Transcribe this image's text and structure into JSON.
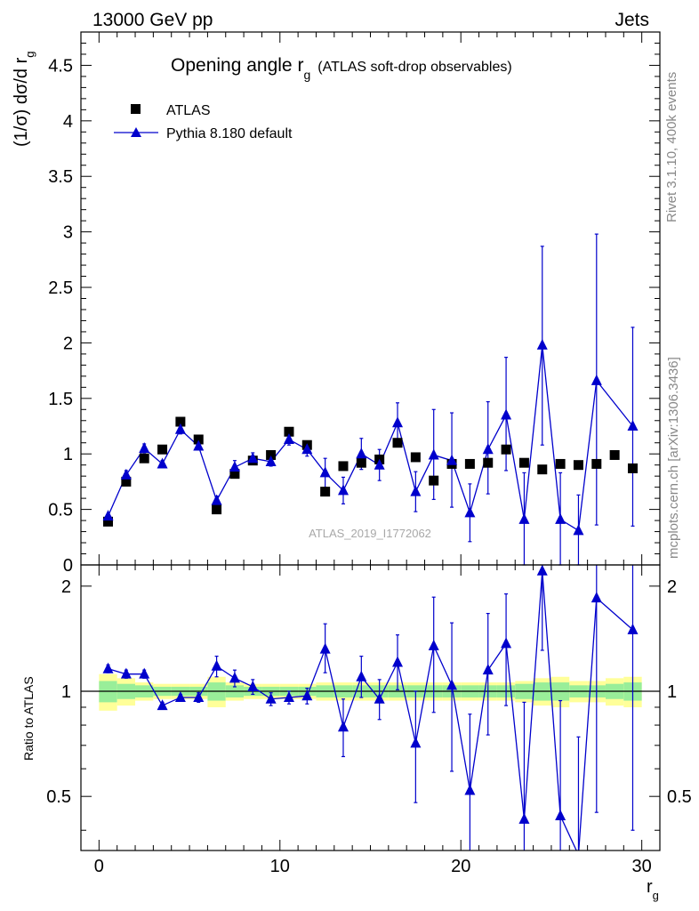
{
  "header": {
    "energy_label": "13000 GeV pp",
    "category_label": "Jets"
  },
  "side_labels": {
    "rivet_info": "Rivet 3.1.10,  400k events",
    "mcplots_info": "mcplots.cern.ch [arXiv:1306.3436]"
  },
  "chart_data": {
    "type": "scatter",
    "title_main": "Opening angle r",
    "title_sub": "g",
    "title_suffix": "(ATLAS soft-drop observables)",
    "watermark": "ATLAS_2019_I1772062",
    "xlabel_main": "r",
    "xlabel_sub": "g",
    "ylabel_main": "(1/σ) dσ/d r",
    "ylabel_sub": "g",
    "ratio_ylabel": "Ratio to ATLAS",
    "xlim": [
      -1,
      31
    ],
    "ylim": [
      0,
      4.8
    ],
    "ratio_ylim": [
      0.35,
      2.3
    ],
    "x_ticks": [
      "0",
      "10",
      "20",
      "30"
    ],
    "y_ticks": [
      "0",
      "0.5",
      "1",
      "1.5",
      "2",
      "2.5",
      "3",
      "3.5",
      "4",
      "4.5"
    ],
    "ratio_ticks": [
      "0.5",
      "1",
      "2"
    ],
    "legend": [
      {
        "name": "ATLAS",
        "marker": "square",
        "color": "#000000"
      },
      {
        "name": "Pythia 8.180 default",
        "marker": "triangle",
        "color": "#0000cc"
      }
    ],
    "x": [
      0.5,
      1.5,
      2.5,
      3.5,
      4.5,
      5.5,
      6.5,
      7.5,
      8.5,
      9.5,
      10.5,
      11.5,
      12.5,
      13.5,
      14.5,
      15.5,
      16.5,
      17.5,
      18.5,
      19.5,
      20.5,
      21.5,
      22.5,
      23.5,
      24.5,
      25.5,
      26.5,
      27.5,
      28.5,
      29.5
    ],
    "series": [
      {
        "name": "ATLAS",
        "values": [
          0.39,
          0.75,
          0.96,
          1.04,
          1.29,
          1.13,
          0.5,
          0.82,
          0.94,
          0.99,
          1.2,
          1.08,
          0.66,
          0.89,
          0.92,
          0.95,
          1.1,
          0.97,
          0.76,
          0.91,
          0.91,
          0.92,
          1.04,
          0.92,
          0.86,
          0.91,
          0.9,
          0.91,
          0.99,
          0.87
        ]
      },
      {
        "name": "Pythia 8.180 default",
        "values": [
          0.44,
          0.81,
          1.05,
          0.91,
          1.22,
          1.07,
          0.58,
          0.88,
          0.96,
          0.93,
          1.13,
          1.04,
          0.83,
          0.67,
          1.0,
          0.9,
          1.28,
          0.66,
          0.99,
          0.94,
          0.47,
          1.04,
          1.35,
          0.41,
          1.98,
          0.41,
          0.31,
          1.66,
          null,
          1.25
        ],
        "err_low": [
          0.02,
          0.04,
          0.04,
          0.03,
          0.04,
          0.03,
          0.04,
          0.06,
          0.05,
          0.04,
          0.05,
          0.06,
          0.13,
          0.12,
          0.14,
          0.14,
          0.16,
          0.18,
          0.4,
          0.42,
          0.26,
          0.4,
          0.5,
          0.41,
          0.9,
          0.41,
          0.31,
          1.3,
          null,
          0.9
        ],
        "err_high": [
          0.02,
          0.04,
          0.04,
          0.03,
          0.04,
          0.03,
          0.04,
          0.06,
          0.05,
          0.04,
          0.05,
          0.06,
          0.13,
          0.12,
          0.14,
          0.14,
          0.18,
          0.18,
          0.41,
          0.43,
          0.26,
          0.43,
          0.52,
          0.42,
          0.89,
          0.42,
          0.32,
          1.32,
          null,
          0.89
        ]
      }
    ],
    "ratio_values": [
      1.16,
      1.12,
      1.12,
      0.91,
      0.96,
      0.96,
      1.18,
      1.09,
      1.03,
      0.95,
      0.96,
      0.97,
      1.32,
      0.79,
      1.1,
      0.95,
      1.21,
      0.71,
      1.35,
      1.04,
      0.52,
      1.15,
      1.37,
      0.43,
      2.21,
      0.44,
      0.34,
      1.85,
      null,
      1.5
    ],
    "ratio_err_low": [
      0.03,
      0.03,
      0.03,
      0.02,
      0.02,
      0.03,
      0.08,
      0.06,
      0.05,
      0.04,
      0.04,
      0.05,
      0.19,
      0.14,
      0.14,
      0.12,
      0.2,
      0.23,
      0.48,
      0.45,
      0.3,
      0.4,
      0.46,
      0.45,
      0.9,
      0.45,
      0.34,
      1.4,
      null,
      1.1
    ],
    "ratio_err_high": [
      0.03,
      0.03,
      0.03,
      0.02,
      0.02,
      0.03,
      0.08,
      0.06,
      0.05,
      0.04,
      0.04,
      0.05,
      0.24,
      0.16,
      0.16,
      0.13,
      0.24,
      0.29,
      0.51,
      0.53,
      0.34,
      0.52,
      0.53,
      0.5,
      0.9,
      0.5,
      0.4,
      1.4,
      null,
      0.88
    ],
    "band_yellow": [
      0.12,
      0.09,
      0.06,
      0.05,
      0.05,
      0.05,
      0.1,
      0.06,
      0.05,
      0.05,
      0.05,
      0.05,
      0.06,
      0.06,
      0.06,
      0.06,
      0.06,
      0.06,
      0.06,
      0.06,
      0.06,
      0.06,
      0.06,
      0.07,
      0.09,
      0.1,
      0.07,
      0.07,
      0.09,
      0.1
    ],
    "band_green": [
      0.07,
      0.05,
      0.04,
      0.03,
      0.03,
      0.03,
      0.06,
      0.04,
      0.03,
      0.03,
      0.03,
      0.03,
      0.04,
      0.04,
      0.04,
      0.04,
      0.04,
      0.04,
      0.04,
      0.04,
      0.04,
      0.04,
      0.04,
      0.05,
      0.06,
      0.06,
      0.04,
      0.04,
      0.05,
      0.06
    ]
  }
}
